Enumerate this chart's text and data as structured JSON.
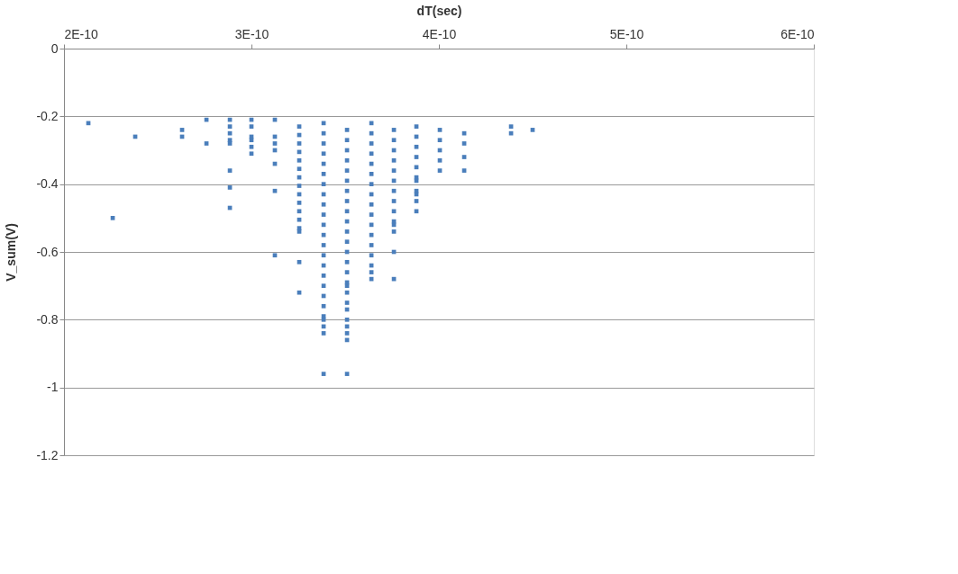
{
  "chart_data": {
    "type": "scatter",
    "xlabel": "dT(sec)",
    "ylabel": "V_sum(V)",
    "xlim": [
      2e-10,
      6e-10
    ],
    "ylim": [
      -1.2,
      0
    ],
    "xticks": [
      {
        "value": 2e-10,
        "label": "2E-10"
      },
      {
        "value": 3e-10,
        "label": "3E-10"
      },
      {
        "value": 4e-10,
        "label": "4E-10"
      },
      {
        "value": 5e-10,
        "label": "5E-10"
      },
      {
        "value": 6e-10,
        "label": "6E-10"
      }
    ],
    "yticks": [
      0,
      -0.2,
      -0.4,
      -0.6,
      -0.8,
      -1,
      -1.2
    ],
    "grid": "y",
    "legend": false,
    "marker": "square",
    "series": [
      {
        "color": "#4a7ebb",
        "x": [
          2.13e-10,
          2.26e-10,
          2.38e-10,
          2.63e-10,
          2.63e-10,
          2.76e-10,
          2.76e-10,
          2.885e-10,
          2.885e-10,
          2.885e-10,
          2.885e-10,
          2.885e-10,
          2.885e-10,
          2.885e-10,
          2.885e-10,
          3e-10,
          3e-10,
          3e-10,
          3e-10,
          3e-10,
          3e-10,
          3.125e-10,
          3.125e-10,
          3.125e-10,
          3.125e-10,
          3.125e-10,
          3.125e-10,
          3.125e-10,
          3.255e-10,
          3.255e-10,
          3.255e-10,
          3.255e-10,
          3.255e-10,
          3.255e-10,
          3.255e-10,
          3.255e-10,
          3.255e-10,
          3.255e-10,
          3.255e-10,
          3.255e-10,
          3.255e-10,
          3.255e-10,
          3.255e-10,
          3.255e-10,
          3.385e-10,
          3.385e-10,
          3.385e-10,
          3.385e-10,
          3.385e-10,
          3.385e-10,
          3.385e-10,
          3.385e-10,
          3.385e-10,
          3.385e-10,
          3.385e-10,
          3.385e-10,
          3.385e-10,
          3.385e-10,
          3.385e-10,
          3.385e-10,
          3.385e-10,
          3.385e-10,
          3.385e-10,
          3.385e-10,
          3.385e-10,
          3.385e-10,
          3.385e-10,
          3.385e-10,
          3.51e-10,
          3.51e-10,
          3.51e-10,
          3.51e-10,
          3.51e-10,
          3.51e-10,
          3.51e-10,
          3.51e-10,
          3.51e-10,
          3.51e-10,
          3.51e-10,
          3.51e-10,
          3.51e-10,
          3.51e-10,
          3.51e-10,
          3.51e-10,
          3.51e-10,
          3.51e-10,
          3.51e-10,
          3.51e-10,
          3.51e-10,
          3.51e-10,
          3.51e-10,
          3.51e-10,
          3.51e-10,
          3.64e-10,
          3.64e-10,
          3.64e-10,
          3.64e-10,
          3.64e-10,
          3.64e-10,
          3.64e-10,
          3.64e-10,
          3.64e-10,
          3.64e-10,
          3.64e-10,
          3.64e-10,
          3.64e-10,
          3.64e-10,
          3.64e-10,
          3.64e-10,
          3.64e-10,
          3.76e-10,
          3.76e-10,
          3.76e-10,
          3.76e-10,
          3.76e-10,
          3.76e-10,
          3.76e-10,
          3.76e-10,
          3.76e-10,
          3.76e-10,
          3.76e-10,
          3.76e-10,
          3.76e-10,
          3.76e-10,
          3.88e-10,
          3.88e-10,
          3.88e-10,
          3.88e-10,
          3.88e-10,
          3.88e-10,
          3.88e-10,
          3.88e-10,
          3.88e-10,
          3.88e-10,
          3.88e-10,
          4.005e-10,
          4.005e-10,
          4.005e-10,
          4.005e-10,
          4.005e-10,
          4.135e-10,
          4.135e-10,
          4.135e-10,
          4.135e-10,
          4.385e-10,
          4.385e-10,
          4.5e-10
        ],
        "values": [
          -0.22,
          -0.5,
          -0.26,
          -0.24,
          -0.26,
          -0.21,
          -0.28,
          -0.21,
          -0.23,
          -0.25,
          -0.27,
          -0.28,
          -0.36,
          -0.41,
          -0.47,
          -0.21,
          -0.23,
          -0.26,
          -0.27,
          -0.29,
          -0.31,
          -0.21,
          -0.26,
          -0.28,
          -0.3,
          -0.34,
          -0.42,
          -0.61,
          -0.23,
          -0.255,
          -0.28,
          -0.305,
          -0.33,
          -0.355,
          -0.38,
          -0.405,
          -0.43,
          -0.455,
          -0.48,
          -0.505,
          -0.53,
          -0.54,
          -0.63,
          -0.72,
          -0.22,
          -0.25,
          -0.28,
          -0.31,
          -0.34,
          -0.37,
          -0.4,
          -0.43,
          -0.46,
          -0.49,
          -0.52,
          -0.55,
          -0.58,
          -0.61,
          -0.64,
          -0.67,
          -0.7,
          -0.73,
          -0.76,
          -0.79,
          -0.8,
          -0.82,
          -0.84,
          -0.96,
          -0.24,
          -0.27,
          -0.3,
          -0.33,
          -0.36,
          -0.39,
          -0.42,
          -0.45,
          -0.48,
          -0.51,
          -0.54,
          -0.57,
          -0.6,
          -0.63,
          -0.66,
          -0.69,
          -0.7,
          -0.72,
          -0.75,
          -0.77,
          -0.8,
          -0.82,
          -0.84,
          -0.86,
          -0.96,
          -0.22,
          -0.25,
          -0.28,
          -0.31,
          -0.34,
          -0.37,
          -0.4,
          -0.43,
          -0.46,
          -0.49,
          -0.52,
          -0.55,
          -0.58,
          -0.61,
          -0.64,
          -0.66,
          -0.68,
          -0.24,
          -0.27,
          -0.3,
          -0.33,
          -0.36,
          -0.39,
          -0.42,
          -0.45,
          -0.48,
          -0.51,
          -0.52,
          -0.54,
          -0.6,
          -0.68,
          -0.23,
          -0.26,
          -0.29,
          -0.32,
          -0.35,
          -0.38,
          -0.39,
          -0.42,
          -0.43,
          -0.45,
          -0.48,
          -0.24,
          -0.27,
          -0.3,
          -0.33,
          -0.36,
          -0.25,
          -0.28,
          -0.32,
          -0.36,
          -0.23,
          -0.25,
          -0.24
        ]
      }
    ]
  }
}
